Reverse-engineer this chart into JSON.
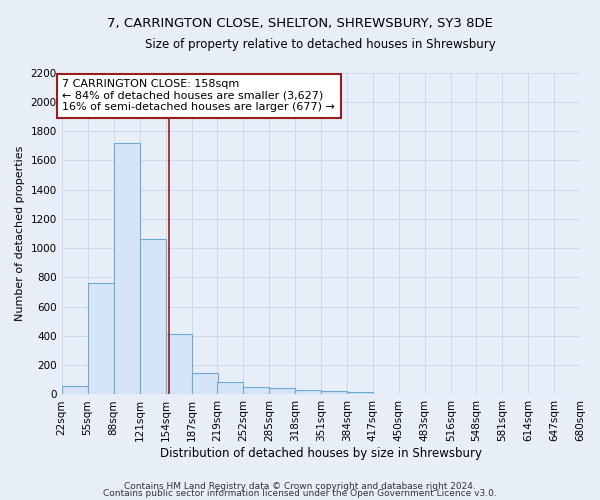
{
  "title1": "7, CARRINGTON CLOSE, SHELTON, SHREWSBURY, SY3 8DE",
  "title2": "Size of property relative to detached houses in Shrewsbury",
  "xlabel": "Distribution of detached houses by size in Shrewsbury",
  "ylabel": "Number of detached properties",
  "footnote1": "Contains HM Land Registry data © Crown copyright and database right 2024.",
  "footnote2": "Contains public sector information licensed under the Open Government Licence v3.0.",
  "bin_edges": [
    22,
    55,
    88,
    121,
    154,
    187,
    219,
    252,
    285,
    318,
    351,
    384,
    417,
    450,
    483,
    516,
    548,
    581,
    614,
    647,
    680
  ],
  "bar_values": [
    55,
    760,
    1720,
    1060,
    415,
    148,
    82,
    48,
    42,
    28,
    25,
    18,
    0,
    0,
    0,
    0,
    0,
    0,
    0,
    0
  ],
  "bar_facecolor": "#d6e4f7",
  "bar_edgecolor": "#6aaad4",
  "bar_linewidth": 0.8,
  "property_size": 158,
  "red_line_color": "#9b1b1b",
  "annotation_line1": "7 CARRINGTON CLOSE: 158sqm",
  "annotation_line2": "← 84% of detached houses are smaller (3,627)",
  "annotation_line3": "16% of semi-detached houses are larger (677) →",
  "annotation_box_edgecolor": "#9b1b1b",
  "annotation_box_facecolor": "#ffffff",
  "ylim": [
    0,
    2200
  ],
  "yticks": [
    0,
    200,
    400,
    600,
    800,
    1000,
    1200,
    1400,
    1600,
    1800,
    2000,
    2200
  ],
  "grid_color": "#c8d4e8",
  "bg_color": "#e8eef8",
  "title1_fontsize": 9.5,
  "title2_fontsize": 8.5,
  "xlabel_fontsize": 8.5,
  "ylabel_fontsize": 8,
  "tick_fontsize": 7.5,
  "annotation_fontsize": 8
}
